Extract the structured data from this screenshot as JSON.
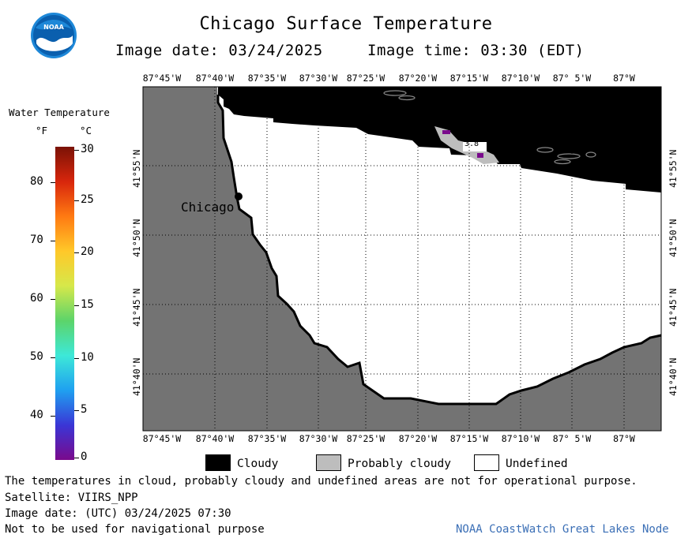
{
  "title": "Chicago Surface Temperature",
  "image_date_label": "Image date: 03/24/2025",
  "image_time_label": "Image time: 03:30 (EDT)",
  "logo": {
    "icon": "noaa-logo",
    "text": "NOAA"
  },
  "longitude_ticks": [
    "87°45'W",
    "87°40'W",
    "87°35'W",
    "87°30'W",
    "87°25'W",
    "87°20'W",
    "87°15'W",
    "87°10'W",
    "87° 5'W",
    "87°W"
  ],
  "latitude_ticks": [
    "41°55'N",
    "41°50'N",
    "41°45'N",
    "41°40'N"
  ],
  "place_label": "Chicago",
  "colorbar": {
    "title": "Water Temperature",
    "unit_f": "°F",
    "unit_c": "°C",
    "f_ticks": [
      "80",
      "70",
      "60",
      "50",
      "40"
    ],
    "c_ticks": [
      "30",
      "25",
      "20",
      "15",
      "10",
      "5",
      "0"
    ],
    "colors": [
      "#7a0a8c",
      "#3a36d6",
      "#1fa0f0",
      "#3de8d8",
      "#5cd46a",
      "#d6e84a",
      "#ffc829",
      "#ff7a12",
      "#d8260c",
      "#7a1206"
    ]
  },
  "map_colors": {
    "land": "#737373",
    "cloudy": "#000000",
    "probably_cloudy": "#bdbdbd",
    "undefined": "#ffffff"
  },
  "legend": {
    "cloudy": "Cloudy",
    "probably_cloudy": "Probably cloudy",
    "undefined": "Undefined"
  },
  "footer": {
    "disclaimer": "The temperatures in cloud, probably cloudy and undefined areas are not for operational purpose.",
    "satellite": "Satellite: VIIRS_NPP",
    "utc_date": "Image date: (UTC) 03/24/2025  07:30",
    "navigation_note": "Not to be used for navigational purpose",
    "credit": "NOAA CoastWatch Great Lakes Node"
  },
  "small_value_label": "3.8"
}
